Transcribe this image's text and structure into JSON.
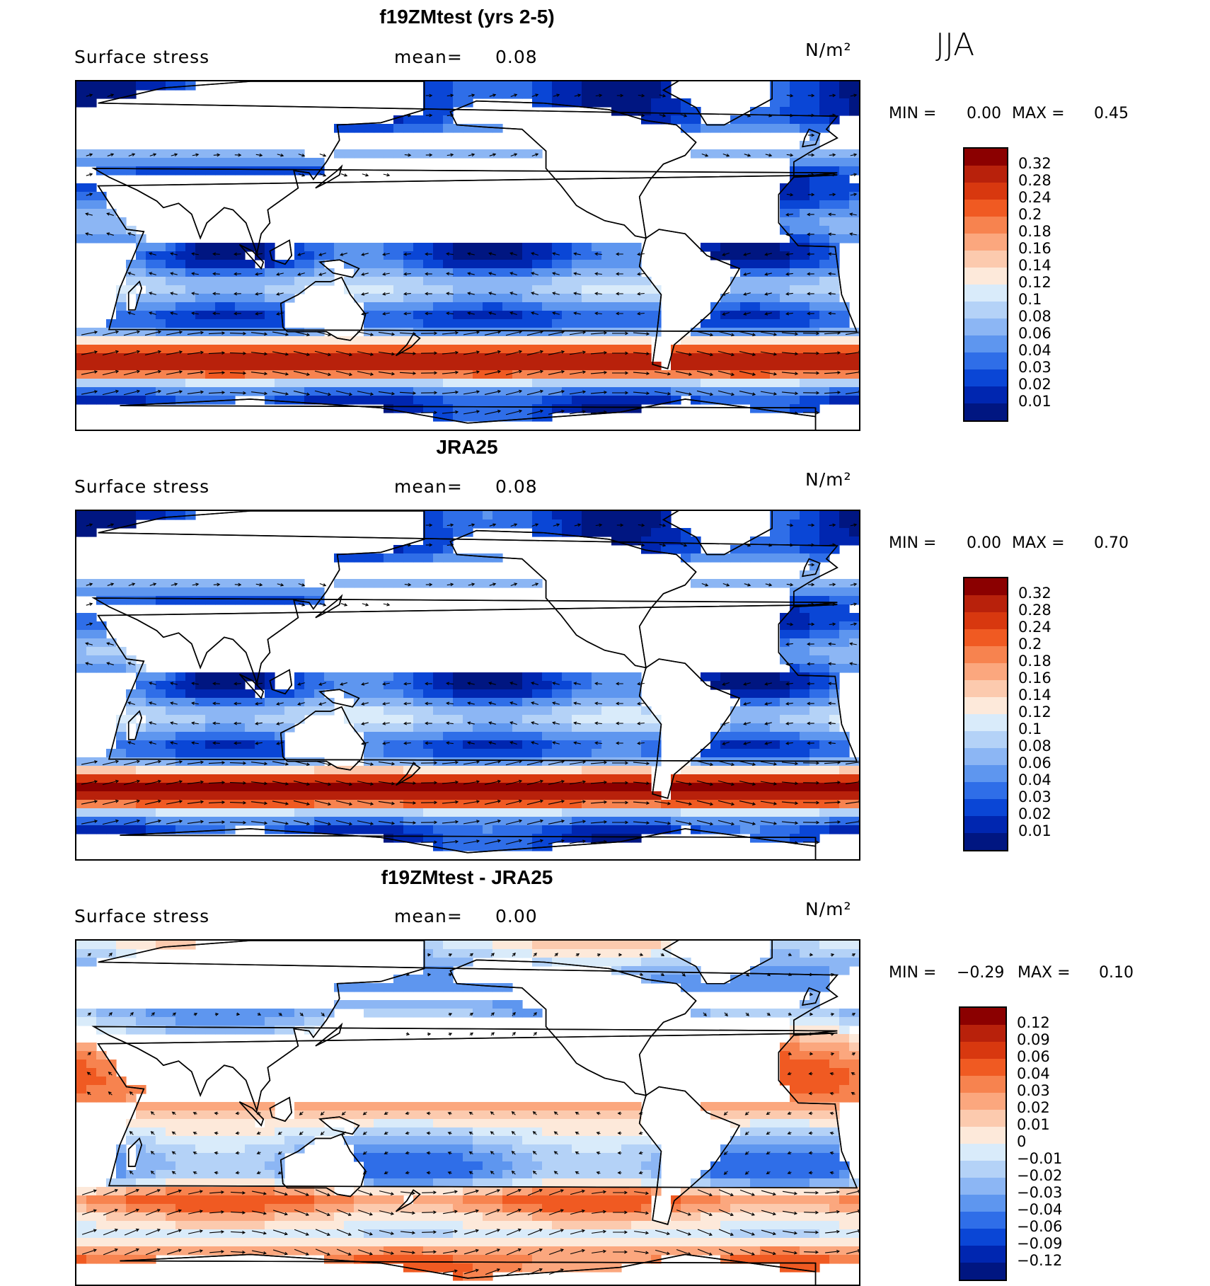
{
  "season": "JJA",
  "chart_data": [
    {
      "type": "heatmap",
      "title": "f19ZMtest (yrs 2-5)",
      "variable": "Surface stress",
      "mean_label": "mean=",
      "mean_value": "0.08",
      "units": "N/m²",
      "min_label": "MIN =",
      "min_value": "0.00",
      "max_label": "MAX =",
      "max_value": "0.45",
      "colorbar_ticks": [
        "0.32",
        "0.28",
        "0.24",
        "0.2",
        "0.18",
        "0.16",
        "0.14",
        "0.12",
        "0.1",
        "0.08",
        "0.06",
        "0.04",
        "0.03",
        "0.02",
        "0.01"
      ],
      "colorbar_colors": [
        "#8b0000",
        "#b8210b",
        "#d8380f",
        "#f05a22",
        "#f7834f",
        "#fba77e",
        "#fccaae",
        "#fde9da",
        "#d9ebfa",
        "#b4d2f7",
        "#8cb6f4",
        "#5e96ef",
        "#2f6ee8",
        "#0a46d6",
        "#0026b0",
        "#001681"
      ]
    },
    {
      "type": "heatmap",
      "title": "JRA25",
      "variable": "Surface stress",
      "mean_label": "mean=",
      "mean_value": "0.08",
      "units": "N/m²",
      "min_label": "MIN =",
      "min_value": "0.00",
      "max_label": "MAX =",
      "max_value": "0.70",
      "colorbar_ticks": [
        "0.32",
        "0.28",
        "0.24",
        "0.2",
        "0.18",
        "0.16",
        "0.14",
        "0.12",
        "0.1",
        "0.08",
        "0.06",
        "0.04",
        "0.03",
        "0.02",
        "0.01"
      ],
      "colorbar_colors": [
        "#8b0000",
        "#b8210b",
        "#d8380f",
        "#f05a22",
        "#f7834f",
        "#fba77e",
        "#fccaae",
        "#fde9da",
        "#d9ebfa",
        "#b4d2f7",
        "#8cb6f4",
        "#5e96ef",
        "#2f6ee8",
        "#0a46d6",
        "#0026b0",
        "#001681"
      ]
    },
    {
      "type": "heatmap",
      "title": "f19ZMtest - JRA25",
      "variable": "Surface stress",
      "mean_label": "mean=",
      "mean_value": "0.00",
      "units": "N/m²",
      "min_label": "MIN =",
      "min_value": "−0.29",
      "max_label": "MAX =",
      "max_value": "0.10",
      "colorbar_ticks": [
        "0.12",
        "0.09",
        "0.06",
        "0.04",
        "0.03",
        "0.02",
        "0.01",
        "0",
        "−0.01",
        "−0.02",
        "−0.03",
        "−0.04",
        "−0.06",
        "−0.09",
        "−0.12"
      ],
      "colorbar_colors": [
        "#8b0000",
        "#b8210b",
        "#d8380f",
        "#f05a22",
        "#f7834f",
        "#fba77e",
        "#fccaae",
        "#fde9da",
        "#d9ebfa",
        "#b4d2f7",
        "#8cb6f4",
        "#5e96ef",
        "#2f6ee8",
        "#0a46d6",
        "#0026b0",
        "#001681"
      ]
    }
  ]
}
